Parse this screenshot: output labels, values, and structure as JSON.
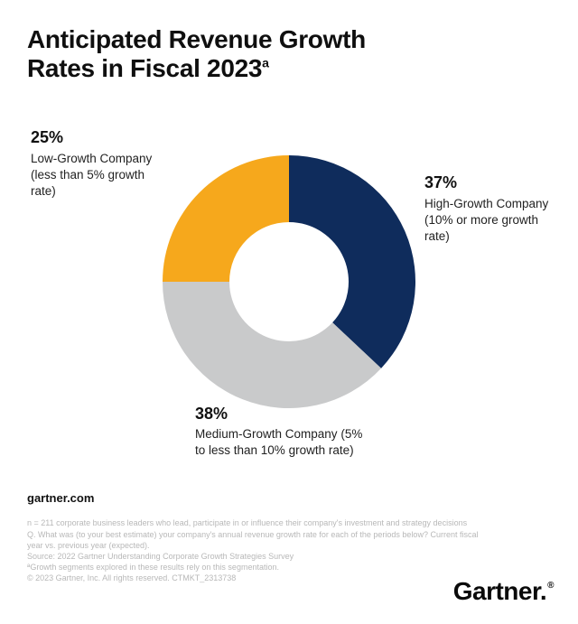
{
  "title_line1": "Anticipated Revenue Growth",
  "title_line2": "Rates in Fiscal 2023",
  "title_sup": "a",
  "chart": {
    "type": "donut",
    "background_color": "#ffffff",
    "outer_radius": 140,
    "inner_radius": 66,
    "slices": [
      {
        "key": "high",
        "value": 37,
        "color": "#0f2c5c",
        "pct_label": "37%",
        "name": "High-Growth Company",
        "desc": "(10% or more growth rate)"
      },
      {
        "key": "medium",
        "value": 38,
        "color": "#c9cacb",
        "pct_label": "38%",
        "name": "Medium-Growth Company",
        "desc": "(5% to less than 10% growth rate)"
      },
      {
        "key": "low",
        "value": 25,
        "color": "#f6a81c",
        "pct_label": "25%",
        "name": "Low-Growth Company",
        "desc": "(less than 5% growth rate)"
      }
    ],
    "start_angle_deg": -90,
    "direction": "clockwise"
  },
  "site": "gartner.com",
  "fineprint": [
    "n = 211 corporate business leaders who lead, participate in or influence their company's investment and strategy decisions",
    "Q. What was (to your best estimate) your company's annual revenue growth rate for each of the periods below? Current fiscal year vs. previous year (expected).",
    "Source: 2022 Gartner Understanding Corporate Growth Strategies Survey",
    "ªGrowth segments explored in these results rely on this segmentation.",
    "© 2023 Gartner, Inc. All rights reserved. CTMKT_2313738"
  ],
  "logo_text": "Gartner",
  "logo_tm": "®"
}
